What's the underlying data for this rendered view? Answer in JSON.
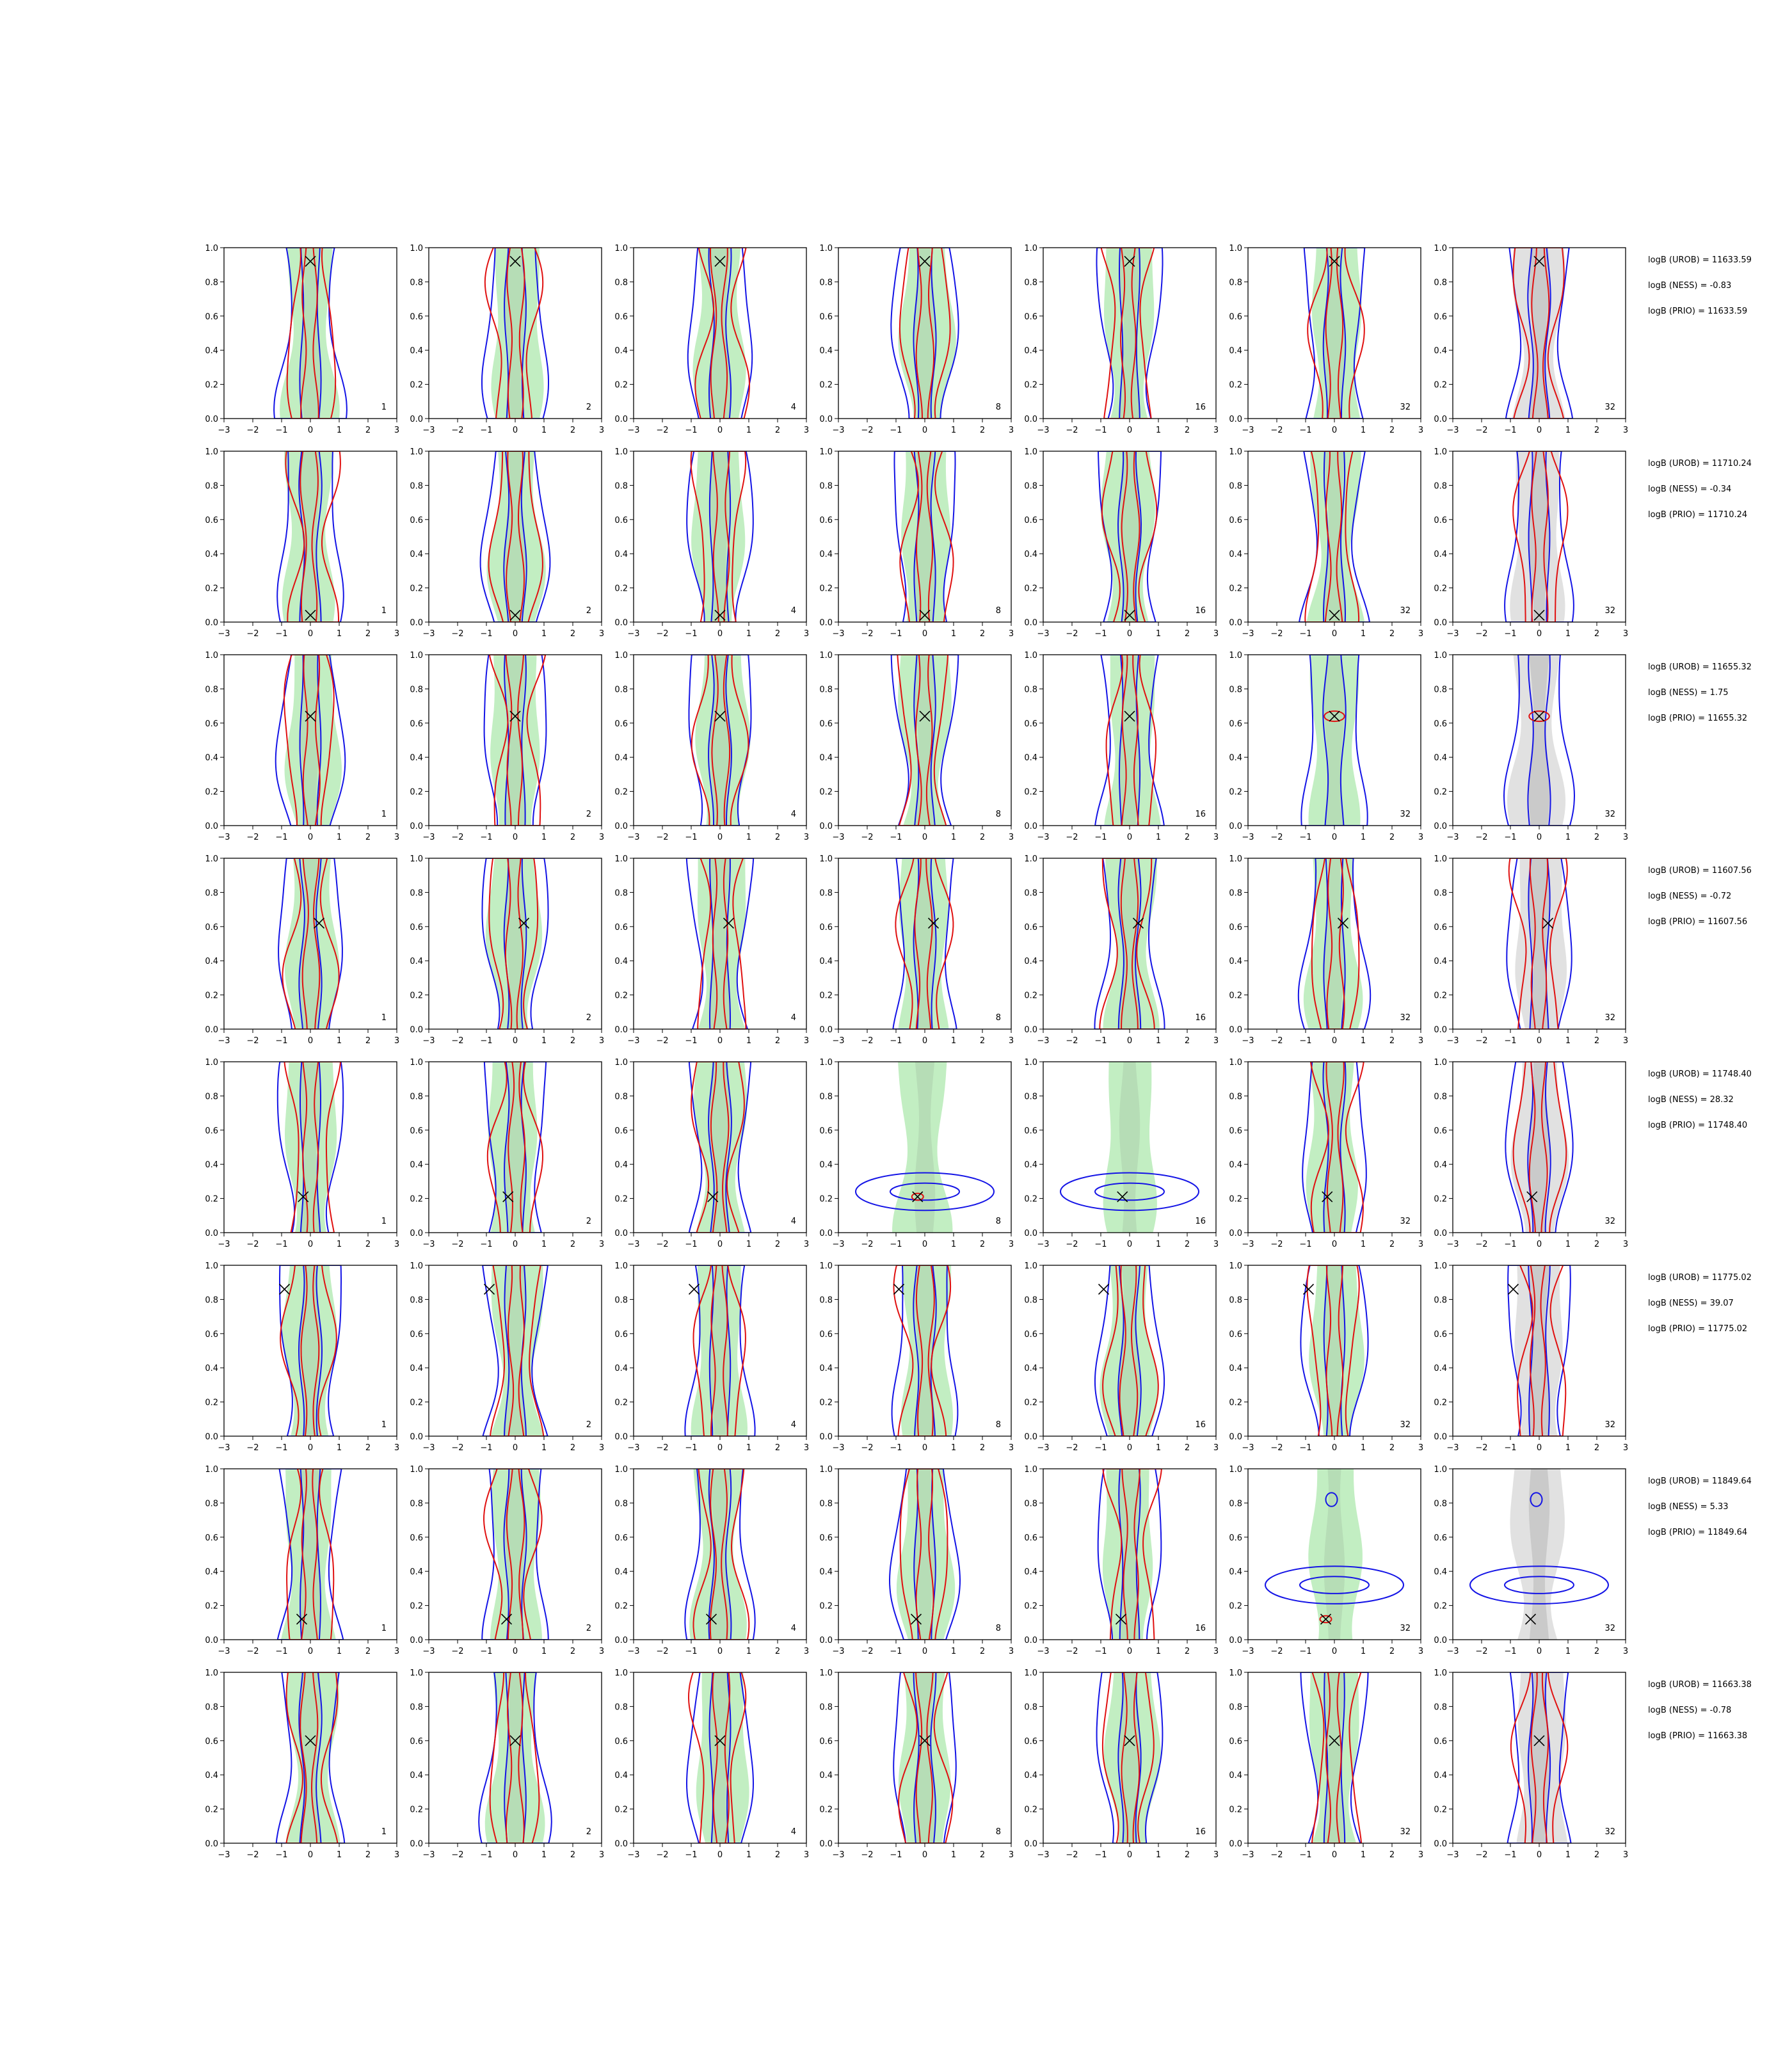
{
  "figure": {
    "type": "contour-grid",
    "rows": 8,
    "cols": 7,
    "x_axis": {
      "range": [
        -3,
        3
      ],
      "ticks": [
        "−3",
        "−2",
        "−1",
        "0",
        "1",
        "2",
        "3"
      ]
    },
    "y_axis": {
      "range": [
        0.0,
        1.0
      ],
      "ticks": [
        "0.0",
        "0.2",
        "0.4",
        "0.6",
        "0.8",
        "1.0"
      ]
    },
    "panel_labels": [
      "1",
      "2",
      "4",
      "8",
      "16",
      "32",
      "32"
    ],
    "colors": {
      "filled_green": "#90e090",
      "filled_grey": "#c8c8c8",
      "blue": "#1414e6",
      "red": "#e01010",
      "marker": "#000000"
    }
  },
  "chart_data": {
    "type": "contour",
    "rows": [
      {
        "marker": [
          0.0,
          0.92
        ],
        "annotations": [
          "logB (UROB) = 11633.59",
          "logB (NESS) = -0.83",
          "logB (PRIO) = 11633.59"
        ]
      },
      {
        "marker": [
          0.0,
          0.04
        ],
        "annotations": [
          "logB (UROB) = 11710.24",
          "logB (NESS) = -0.34",
          "logB (PRIO) = 11710.24"
        ]
      },
      {
        "marker": [
          0.0,
          0.64
        ],
        "annotations": [
          "logB (UROB) = 11655.32",
          "logB (NESS) = 1.75",
          "logB (PRIO) = 11655.32"
        ]
      },
      {
        "marker": [
          0.3,
          0.62
        ],
        "annotations": [
          "logB (UROB) = 11607.56",
          "logB (NESS) = -0.72",
          "logB (PRIO) = 11607.56"
        ]
      },
      {
        "marker": [
          -0.25,
          0.21
        ],
        "annotations": [
          "logB (UROB) = 11748.40",
          "logB (NESS) = 28.32",
          "logB (PRIO) = 11748.40"
        ]
      },
      {
        "marker": [
          -0.9,
          0.86
        ],
        "annotations": [
          "logB (UROB) = 11775.02",
          "logB (NESS) = 39.07",
          "logB (PRIO) = 11775.02"
        ]
      },
      {
        "marker": [
          -0.3,
          0.12
        ],
        "annotations": [
          "logB (UROB) = 11849.64",
          "logB (NESS) = 5.33",
          "logB (PRIO) = 11849.64"
        ]
      },
      {
        "marker": [
          0.0,
          0.6
        ],
        "annotations": [
          "logB (UROB) = 11663.38",
          "logB (NESS) = -0.78",
          "logB (PRIO) = 11663.38"
        ]
      }
    ]
  }
}
